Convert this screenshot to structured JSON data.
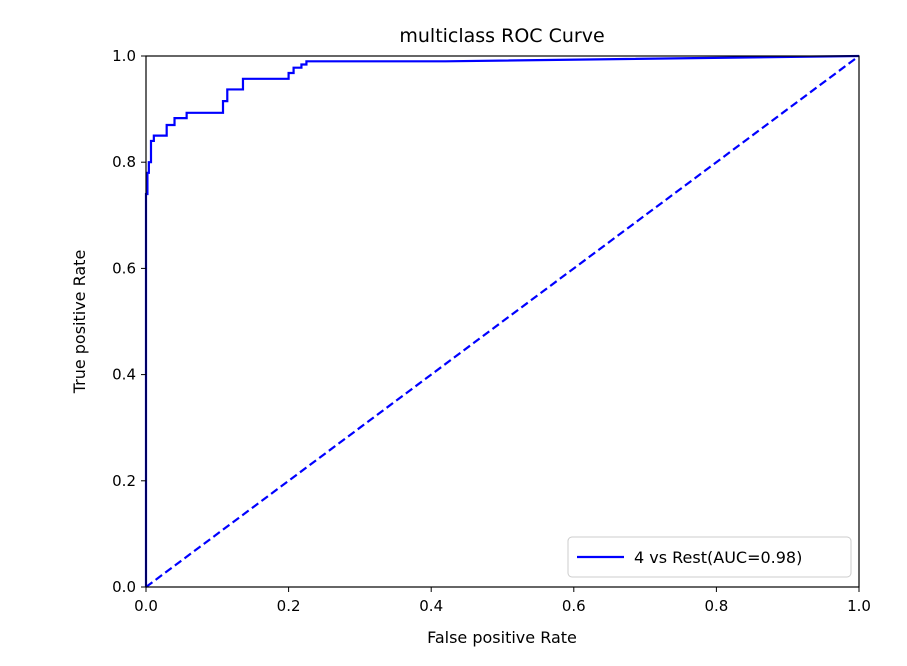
{
  "chart_data": {
    "type": "line",
    "title": "multiclass ROC Curve",
    "xlabel": "False positive Rate",
    "ylabel": "True positive Rate",
    "xlim": [
      0.0,
      1.0
    ],
    "ylim": [
      0.0,
      1.0
    ],
    "x_ticks": [
      0.0,
      0.2,
      0.4,
      0.6,
      0.8,
      1.0
    ],
    "x_tick_labels": [
      "0.0",
      "0.2",
      "0.4",
      "0.6",
      "0.8",
      "1.0"
    ],
    "y_ticks": [
      0.0,
      0.2,
      0.4,
      0.6,
      0.8,
      1.0
    ],
    "y_tick_labels": [
      "0.0",
      "0.2",
      "0.4",
      "0.6",
      "0.8",
      "1.0"
    ],
    "grid": false,
    "legend_position": "bottom-right",
    "series": [
      {
        "name": "4 vs Rest(AUC=0.98)",
        "color": "#0000ff",
        "linestyle": "solid",
        "in_legend": true,
        "x": [
          0.0,
          0.0,
          0.002,
          0.002,
          0.004,
          0.004,
          0.007,
          0.007,
          0.011,
          0.011,
          0.029,
          0.029,
          0.04,
          0.04,
          0.057,
          0.057,
          0.108,
          0.108,
          0.114,
          0.114,
          0.136,
          0.136,
          0.2,
          0.2,
          0.207,
          0.207,
          0.218,
          0.218,
          0.225,
          0.225,
          0.42,
          1.0
        ],
        "y": [
          0.0,
          0.74,
          0.74,
          0.78,
          0.78,
          0.8,
          0.8,
          0.84,
          0.84,
          0.85,
          0.85,
          0.87,
          0.87,
          0.883,
          0.883,
          0.893,
          0.893,
          0.915,
          0.915,
          0.937,
          0.937,
          0.957,
          0.957,
          0.968,
          0.968,
          0.978,
          0.978,
          0.984,
          0.984,
          0.99,
          0.99,
          1.0
        ]
      },
      {
        "name": "chance",
        "color": "#0000ff",
        "linestyle": "dashed",
        "in_legend": false,
        "x": [
          0.0,
          1.0
        ],
        "y": [
          0.0,
          1.0
        ]
      }
    ]
  }
}
